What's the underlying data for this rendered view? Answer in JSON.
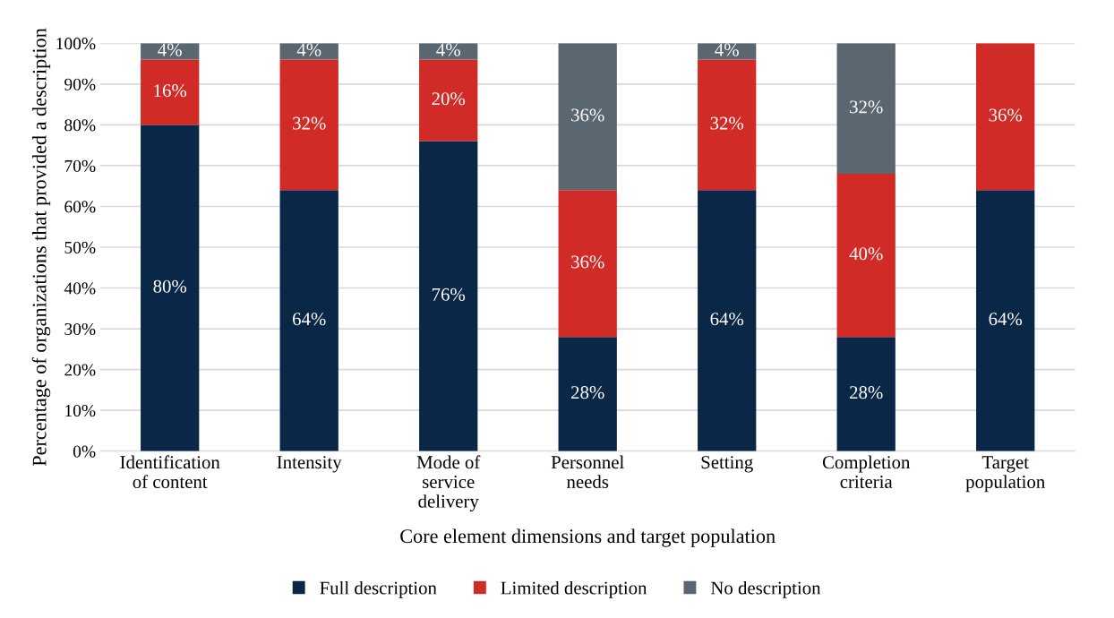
{
  "chart_data": {
    "type": "bar",
    "stacked": true,
    "xlabel": "Core element dimensions and target population",
    "ylabel": "Percentage of organizations that provided a description",
    "categories": [
      "Identification\nof content",
      "Intensity",
      "Mode of\nservice\ndelivery",
      "Personnel\nneeds",
      "Setting",
      "Completion\ncriteria",
      "Target\npopulation"
    ],
    "series": [
      {
        "name": "Full description",
        "color": "#0b2747",
        "values": [
          80,
          64,
          76,
          28,
          64,
          28,
          64
        ],
        "value_labels": [
          "80%",
          "64%",
          "76%",
          "28%",
          "64%",
          "28%",
          "64%"
        ]
      },
      {
        "name": "Limited description",
        "color": "#d12b27",
        "values": [
          16,
          32,
          20,
          36,
          32,
          40,
          36
        ],
        "value_labels": [
          "16%",
          "32%",
          "20%",
          "36%",
          "32%",
          "40%",
          "36%"
        ]
      },
      {
        "name": "No description",
        "color": "#5a6670",
        "values": [
          4,
          4,
          4,
          36,
          4,
          32,
          null
        ],
        "value_labels": [
          "4%",
          "4%",
          "4%",
          "36%",
          "4%",
          "32%",
          null
        ]
      }
    ],
    "ylim": [
      0,
      100
    ],
    "yticks": [
      {
        "value": 0,
        "label": "0%"
      },
      {
        "value": 10,
        "label": "10%"
      },
      {
        "value": 20,
        "label": "20%"
      },
      {
        "value": 30,
        "label": "30%"
      },
      {
        "value": 40,
        "label": "40%"
      },
      {
        "value": 50,
        "label": "50%"
      },
      {
        "value": 60,
        "label": "60%"
      },
      {
        "value": 70,
        "label": "70%"
      },
      {
        "value": 80,
        "label": "80%"
      },
      {
        "value": 90,
        "label": "90%"
      },
      {
        "value": 100,
        "label": "100%"
      }
    ],
    "grid": "y",
    "legend": "bottom"
  }
}
